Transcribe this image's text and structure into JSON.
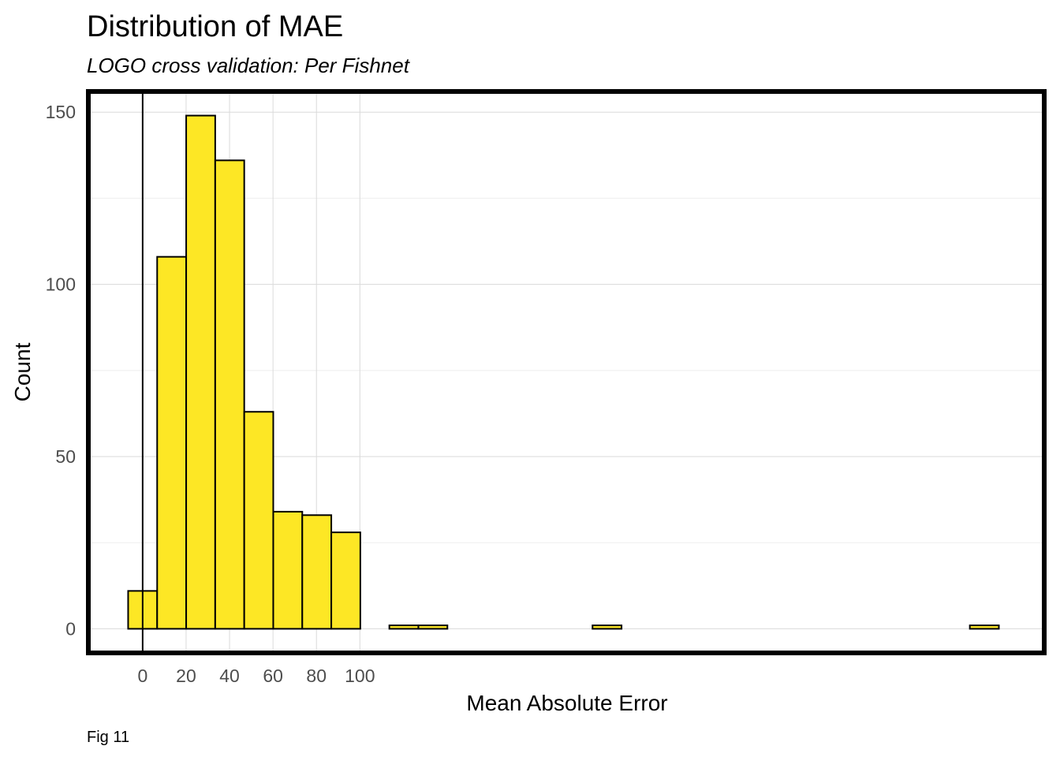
{
  "chart_data": {
    "type": "bar",
    "title": "Distribution of MAE",
    "subtitle": "LOGO cross validation: Per Fishnet",
    "xlabel": "Mean Absolute Error",
    "ylabel": "Count",
    "caption": "Fig 11",
    "bin_width": 13.36,
    "bins": [
      {
        "center": 0.0,
        "count": 11
      },
      {
        "center": 13.36,
        "count": 108
      },
      {
        "center": 26.72,
        "count": 149
      },
      {
        "center": 40.08,
        "count": 136
      },
      {
        "center": 53.44,
        "count": 63
      },
      {
        "center": 66.8,
        "count": 34
      },
      {
        "center": 80.16,
        "count": 33
      },
      {
        "center": 93.52,
        "count": 28
      },
      {
        "center": 106.88,
        "count": 0
      },
      {
        "center": 120.24,
        "count": 1
      },
      {
        "center": 133.6,
        "count": 1
      },
      {
        "center": 146.96,
        "count": 0
      },
      {
        "center": 160.32,
        "count": 0
      },
      {
        "center": 173.68,
        "count": 0
      },
      {
        "center": 187.04,
        "count": 0
      },
      {
        "center": 200.4,
        "count": 0
      },
      {
        "center": 213.76,
        "count": 1
      },
      {
        "center": 227.12,
        "count": 0
      },
      {
        "center": 240.48,
        "count": 0
      },
      {
        "center": 253.84,
        "count": 0
      },
      {
        "center": 267.2,
        "count": 0
      },
      {
        "center": 280.56,
        "count": 0
      },
      {
        "center": 293.92,
        "count": 0
      },
      {
        "center": 307.28,
        "count": 0
      },
      {
        "center": 320.64,
        "count": 0
      },
      {
        "center": 334.0,
        "count": 0
      },
      {
        "center": 347.36,
        "count": 0
      },
      {
        "center": 360.72,
        "count": 0
      },
      {
        "center": 374.08,
        "count": 0
      },
      {
        "center": 387.44,
        "count": 1
      }
    ],
    "x_ticks": [
      {
        "value": 0,
        "label": "0"
      },
      {
        "value": 20,
        "label": "20"
      },
      {
        "value": 40,
        "label": "40"
      },
      {
        "value": 60,
        "label": "60"
      },
      {
        "value": 80,
        "label": "80"
      },
      {
        "value": 100,
        "label": "100"
      }
    ],
    "y_ticks": [
      {
        "value": 0,
        "label": "0"
      },
      {
        "value": 50,
        "label": "50"
      },
      {
        "value": 100,
        "label": "100"
      },
      {
        "value": 150,
        "label": "150"
      }
    ],
    "xlim": [
      -25,
      415
    ],
    "ylim": [
      -7,
      156
    ],
    "vline_x": 0,
    "grid": true,
    "bar_fill": "#FDE725",
    "bar_stroke": "#000000"
  }
}
